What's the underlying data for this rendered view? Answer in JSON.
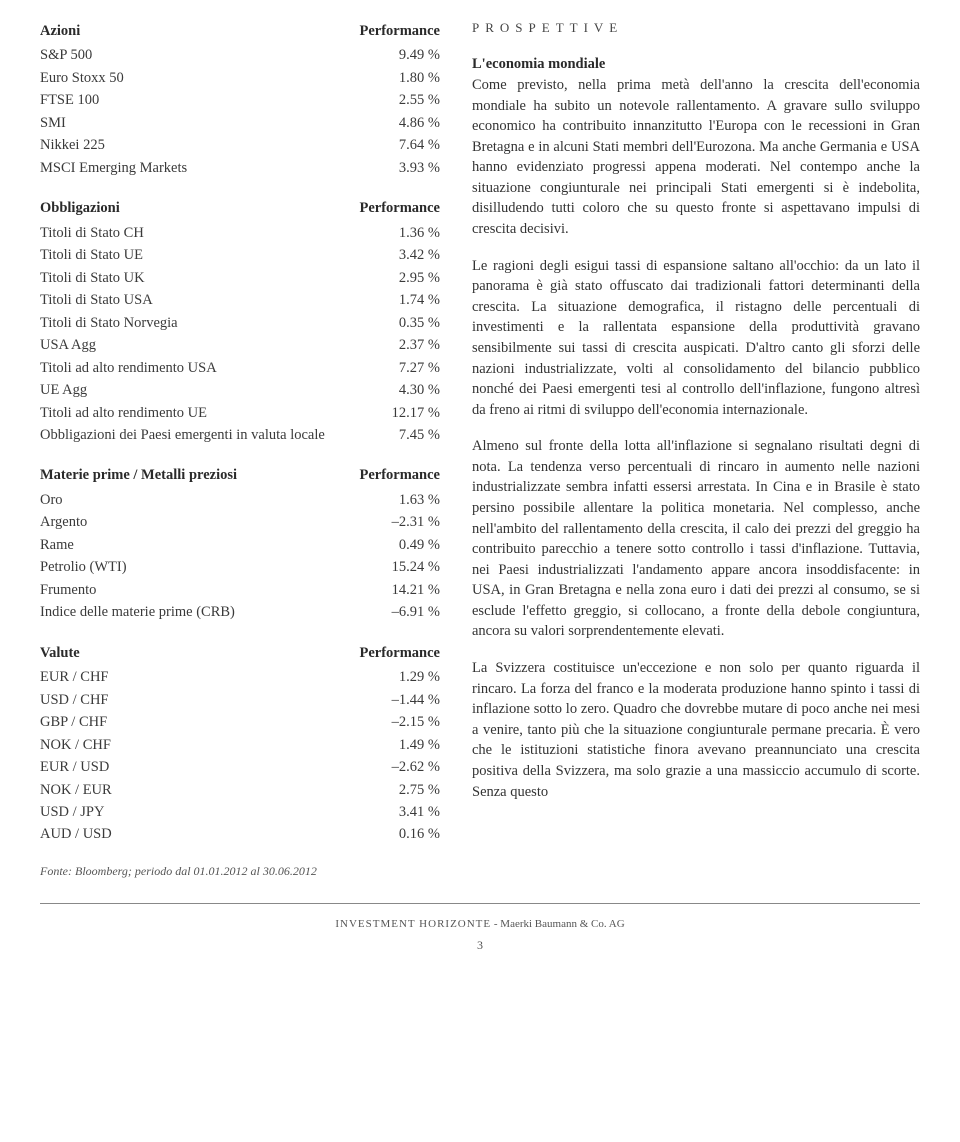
{
  "tables": {
    "azioni": {
      "header_left": "Azioni",
      "header_right": "Performance",
      "rows": [
        {
          "label": "S&P 500",
          "value": "9.49 %"
        },
        {
          "label": "Euro Stoxx 50",
          "value": "1.80 %"
        },
        {
          "label": "FTSE 100",
          "value": "2.55 %"
        },
        {
          "label": "SMI",
          "value": "4.86 %"
        },
        {
          "label": "Nikkei 225",
          "value": "7.64 %"
        },
        {
          "label": "MSCI Emerging Markets",
          "value": "3.93 %"
        }
      ]
    },
    "obbligazioni": {
      "header_left": "Obbligazioni",
      "header_right": "Performance",
      "rows": [
        {
          "label": "Titoli di Stato CH",
          "value": "1.36 %"
        },
        {
          "label": "Titoli di Stato UE",
          "value": "3.42 %"
        },
        {
          "label": "Titoli di Stato UK",
          "value": "2.95 %"
        },
        {
          "label": "Titoli di Stato USA",
          "value": "1.74 %"
        },
        {
          "label": "Titoli di Stato Norvegia",
          "value": "0.35 %"
        },
        {
          "label": "USA Agg",
          "value": "2.37 %"
        },
        {
          "label": "Titoli ad alto rendimento USA",
          "value": "7.27 %"
        },
        {
          "label": "UE Agg",
          "value": "4.30 %"
        },
        {
          "label": "Titoli ad alto rendimento UE",
          "value": "12.17 %"
        },
        {
          "label": "Obbligazioni dei Paesi emergenti in valuta locale",
          "value": "7.45 %"
        }
      ]
    },
    "materie": {
      "header_left": "Materie prime / Metalli preziosi",
      "header_right": "Performance",
      "rows": [
        {
          "label": "Oro",
          "value": "1.63 %"
        },
        {
          "label": "Argento",
          "value": "–2.31 %"
        },
        {
          "label": "Rame",
          "value": "0.49 %"
        },
        {
          "label": "Petrolio (WTI)",
          "value": "15.24 %"
        },
        {
          "label": "Frumento",
          "value": "14.21 %"
        },
        {
          "label": "Indice delle materie prime (CRB)",
          "value": "–6.91 %"
        }
      ]
    },
    "valute": {
      "header_left": "Valute",
      "header_right": "Performance",
      "rows": [
        {
          "label": "EUR / CHF",
          "value": "1.29 %"
        },
        {
          "label": "USD / CHF",
          "value": "–1.44 %"
        },
        {
          "label": "GBP / CHF",
          "value": "–2.15 %"
        },
        {
          "label": "NOK / CHF",
          "value": "1.49 %"
        },
        {
          "label": "EUR / USD",
          "value": "–2.62 %"
        },
        {
          "label": "NOK / EUR",
          "value": "2.75 %"
        },
        {
          "label": "USD / JPY",
          "value": "3.41 %"
        },
        {
          "label": "AUD / USD",
          "value": "0.16 %"
        }
      ]
    }
  },
  "source_note": "Fonte: Bloomberg; periodo dal 01.01.2012 al 30.06.2012",
  "prospettive": {
    "heading": "PROSPETTIVE",
    "section_title": "L'economia mondiale",
    "paragraphs": [
      "Come previsto, nella prima metà dell'anno la crescita dell'economia mondiale ha subito un notevole rallentamento. A gravare sullo sviluppo economico ha contribuito innanzitutto l'Europa con le recessioni in Gran Bretagna e in alcuni Stati membri dell'Eurozona. Ma anche Germania e USA hanno evidenziato progressi appena moderati. Nel contempo anche la situazione congiunturale nei principali Stati emergenti si è indebolita, disilludendo tutti coloro che su questo fronte si aspettavano impulsi di crescita decisivi.",
      "Le ragioni degli esigui tassi di espansione saltano all'occhio: da un lato il panorama è già stato offuscato dai tradizionali fattori determinanti della crescita. La situazione demografica, il ristagno delle percentuali di investimenti e la rallentata espansione della produttività gravano sensibilmente sui tassi di crescita auspicati. D'altro canto gli sforzi delle nazioni industrializzate, volti al consolidamento del bilancio pubblico nonché dei Paesi emergenti tesi al controllo dell'inflazione, fungono altresì da freno ai ritmi di sviluppo dell'economia internazionale.",
      "Almeno sul fronte della lotta all'inflazione si segnalano risultati degni di nota. La tendenza verso percentuali di rincaro in aumento nelle nazioni industrializzate sembra infatti essersi arrestata. In Cina e in Brasile è stato persino possibile allentare la politica monetaria. Nel complesso, anche nell'ambito del rallentamento della crescita, il calo dei prezzi del greggio ha contribuito parecchio a tenere sotto controllo i tassi d'inflazione. Tuttavia, nei Paesi industrializzati l'andamento appare ancora insoddisfacente: in USA, in Gran Bretagna e nella zona euro i dati dei prezzi al consumo, se si esclude l'effetto greggio, si collocano, a fronte della debole congiuntura, ancora su valori sorprendentemente elevati.",
      "La Svizzera costituisce un'eccezione e non solo per quanto riguarda il rincaro. La forza del franco e la moderata produzione hanno spinto i tassi di inflazione sotto lo zero. Quadro che dovrebbe mutare di poco anche nei mesi a venire, tanto più che la situazione congiunturale permane precaria. È vero che le istituzioni statistiche finora avevano preannunciato una crescita positiva della Svizzera, ma solo grazie a una massiccio accumulo di scorte. Senza questo"
    ]
  },
  "footer": {
    "brand": "INVESTMENT HORIZONTE",
    "company": " - Maerki Baumann & Co. AG",
    "page": "3"
  }
}
